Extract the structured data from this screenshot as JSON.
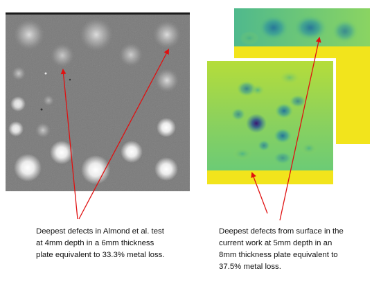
{
  "captions": {
    "left": [
      "Deepest defects in Almond et al. test",
      "at 4mm depth in a 6mm thickness",
      "plate equivalent to 33.3% metal loss."
    ],
    "right": [
      "Deepest defects from surface in the",
      "current work at 5mm depth in an",
      "8mm thickness plate equivalent to",
      "37.5% metal loss."
    ]
  },
  "colors": {
    "arrow": "#e01010",
    "thermal_background": "#7a7a7a",
    "thermal_bright_spot": "#ffffff",
    "map_high": "#f2e41c",
    "map_mid": "#5ec57a",
    "map_low": "#2a7aa0",
    "map_deepest": "#3b1670"
  },
  "panels": {
    "left_image": "thermal-image-grayscale",
    "right_image": "defect-depth-colormap-stacked"
  }
}
